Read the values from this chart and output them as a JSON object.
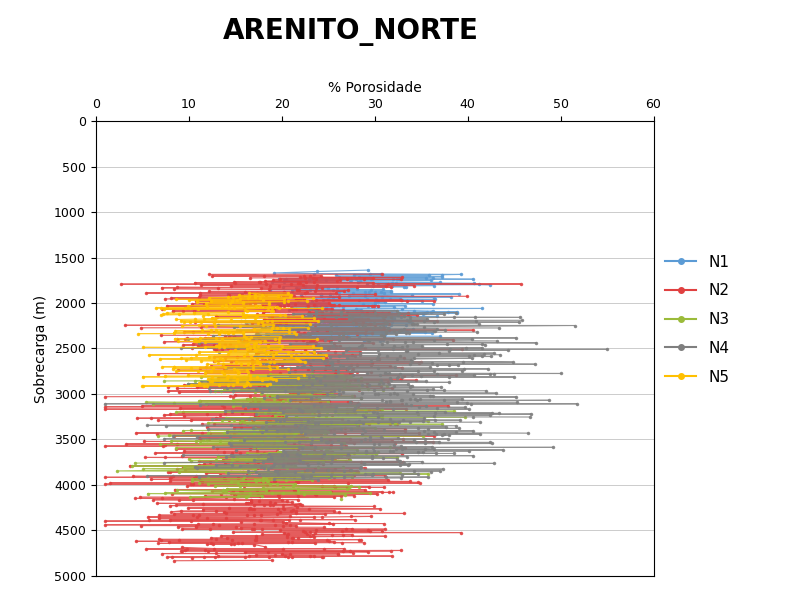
{
  "title": "ARENITO_NORTE",
  "xlabel": "% Porosidade",
  "ylabel": "Sobrecarga (m)",
  "xlim": [
    0,
    60
  ],
  "ylim": [
    5000,
    0
  ],
  "xticks": [
    0,
    10,
    20,
    30,
    40,
    50,
    60
  ],
  "yticks": [
    0,
    500,
    1000,
    1500,
    2000,
    2500,
    3000,
    3500,
    4000,
    4500,
    5000
  ],
  "series_order": [
    "N1",
    "N2",
    "N3",
    "N4",
    "N5"
  ],
  "colors": {
    "N1": "#5B9BD5",
    "N2": "#E04040",
    "N3": "#9BBB3A",
    "N4": "#7F7F7F",
    "N5": "#FFC000"
  },
  "background_color": "#FFFFFF",
  "title_fontsize": 20,
  "label_fontsize": 10,
  "tick_fontsize": 9,
  "legend_fontsize": 11
}
